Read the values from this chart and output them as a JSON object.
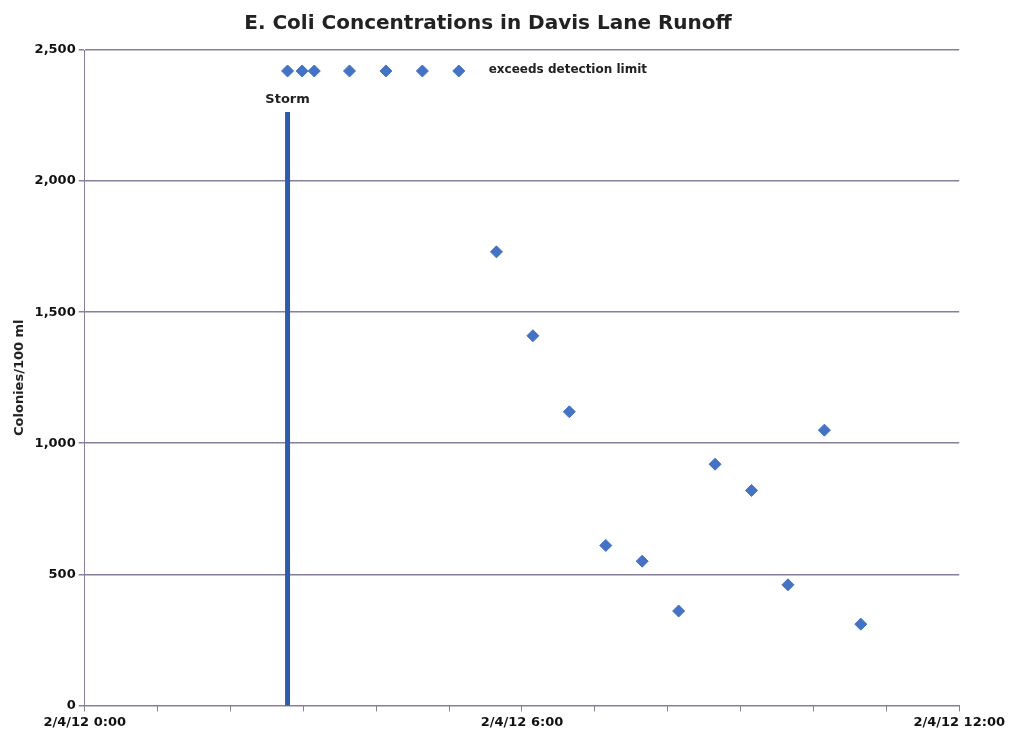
{
  "chart_data": {
    "type": "scatter",
    "title": "E. Coli Concentrations in Davis Lane Runoff",
    "ylabel": "Colonies/100 ml",
    "x": [
      "--02-04T02:47",
      "--02-04T02:59",
      "--02-04T03:09",
      "--02-04T03:38",
      "--02-04T04:08",
      "--02-04T04:38",
      "--02-04T05:08",
      "--02-04T05:39",
      "--02-04T06:09",
      "--02-04T06:39",
      "--02-04T07:09",
      "--02-04T07:39",
      "--02-04T08:09",
      "--02-04T08:39",
      "--02-04T09:09",
      "--02-04T09:39",
      "--02-04T10:09",
      "--02-04T10:39"
    ],
    "series": [
      {
        "color": "#4472c4",
        "values": [
          2420,
          2420,
          2420,
          2420,
          2420,
          2420,
          2420,
          1730,
          1410,
          1120,
          610,
          550,
          360,
          920,
          820,
          460,
          1050,
          310
        ]
      }
    ],
    "xlim": [
      "--02-04T00:00",
      "--02-04T12:00"
    ],
    "xticks": [
      {
        "value": "--02-04T00:00",
        "label": "2/4/12 0:00"
      },
      {
        "value": "--02-04T01:00",
        "label": null
      },
      {
        "value": "--02-04T02:00",
        "label": null
      },
      {
        "value": "--02-04T03:00",
        "label": null
      },
      {
        "value": "--02-04T04:00",
        "label": null
      },
      {
        "value": "--02-04T05:00",
        "label": null
      },
      {
        "value": "--02-04T06:00",
        "label": "2/4/12 6:00"
      },
      {
        "value": "--02-04T07:00",
        "label": null
      },
      {
        "value": "--02-04T08:00",
        "label": null
      },
      {
        "value": "--02-04T09:00",
        "label": null
      },
      {
        "value": "--02-04T10:00",
        "label": null
      },
      {
        "value": "--02-04T11:00",
        "label": null
      },
      {
        "value": "--02-04T12:00",
        "label": "2/4/12 12:00"
      }
    ],
    "ylim": [
      0,
      2500
    ],
    "yticks": [
      0,
      500,
      {
        "value": 1000,
        "label": "1,000"
      },
      {
        "value": 1500,
        "label": "1,500"
      },
      {
        "value": 2000,
        "label": "2,000"
      },
      {
        "value": 2500,
        "label": "2,500"
      }
    ],
    "ref_lines": [
      {
        "axis": "x",
        "value": "--02-04T02:47",
        "label": "Storm",
        "color": "#2f5ba8"
      }
    ],
    "annotations": [
      "exceeds detection limit"
    ],
    "grid": "y",
    "legend": false,
    "marker": "diamond"
  }
}
